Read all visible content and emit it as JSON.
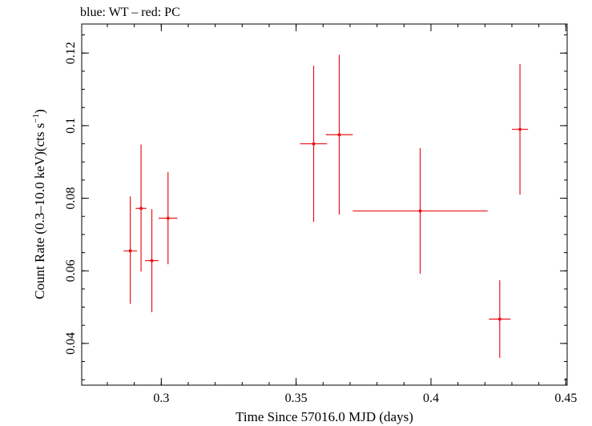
{
  "chart_data": {
    "type": "scatter",
    "title": "blue: WT – red: PC",
    "xlabel": "Time Since 57016.0 MJD (days)",
    "ylabel_main": "Count Rate (0.3–10.0 keV)(cts s",
    "ylabel_sup": "−1",
    "ylabel_close": ")",
    "xlim": [
      0.2705,
      0.4505
    ],
    "ylim": [
      0.0285,
      0.128
    ],
    "xticks": [
      0.3,
      0.35,
      0.4,
      0.45
    ],
    "xtick_labels": [
      "0.3",
      "0.35",
      "0.4",
      "0.45"
    ],
    "yticks": [
      0.04,
      0.06,
      0.08,
      0.1,
      0.12
    ],
    "ytick_labels": [
      "0.04",
      "0.06",
      "0.08",
      "0.1",
      "0.12"
    ],
    "grid": false,
    "series": [
      {
        "color": "#e8141a",
        "points": [
          {
            "x": 0.2885,
            "xerr": [
              0.0025,
              0.0025
            ],
            "y": 0.0655,
            "yerr": [
              0.0146,
              0.015
            ]
          },
          {
            "x": 0.2925,
            "xerr": [
              0.002,
              0.002
            ],
            "y": 0.0772,
            "yerr": [
              0.0174,
              0.0176
            ]
          },
          {
            "x": 0.2965,
            "xerr": [
              0.0025,
              0.0025
            ],
            "y": 0.0628,
            "yerr": [
              0.0142,
              0.0142
            ]
          },
          {
            "x": 0.3025,
            "xerr": [
              0.0035,
              0.0035
            ],
            "y": 0.0745,
            "yerr": [
              0.0127,
              0.0127
            ]
          },
          {
            "x": 0.3565,
            "xerr": [
              0.005,
              0.005
            ],
            "y": 0.095,
            "yerr": [
              0.0215,
              0.0215
            ]
          },
          {
            "x": 0.366,
            "xerr": [
              0.005,
              0.005
            ],
            "y": 0.0975,
            "yerr": [
              0.022,
              0.022
            ]
          },
          {
            "x": 0.396,
            "xerr": [
              0.025,
              0.025
            ],
            "y": 0.0765,
            "yerr": [
              0.0173,
              0.0173
            ]
          },
          {
            "x": 0.4255,
            "xerr": [
              0.004,
              0.004
            ],
            "y": 0.0467,
            "yerr": [
              0.0107,
              0.0107
            ]
          },
          {
            "x": 0.433,
            "xerr": [
              0.003,
              0.003
            ],
            "y": 0.099,
            "yerr": [
              0.018,
              0.018
            ]
          }
        ]
      }
    ]
  }
}
